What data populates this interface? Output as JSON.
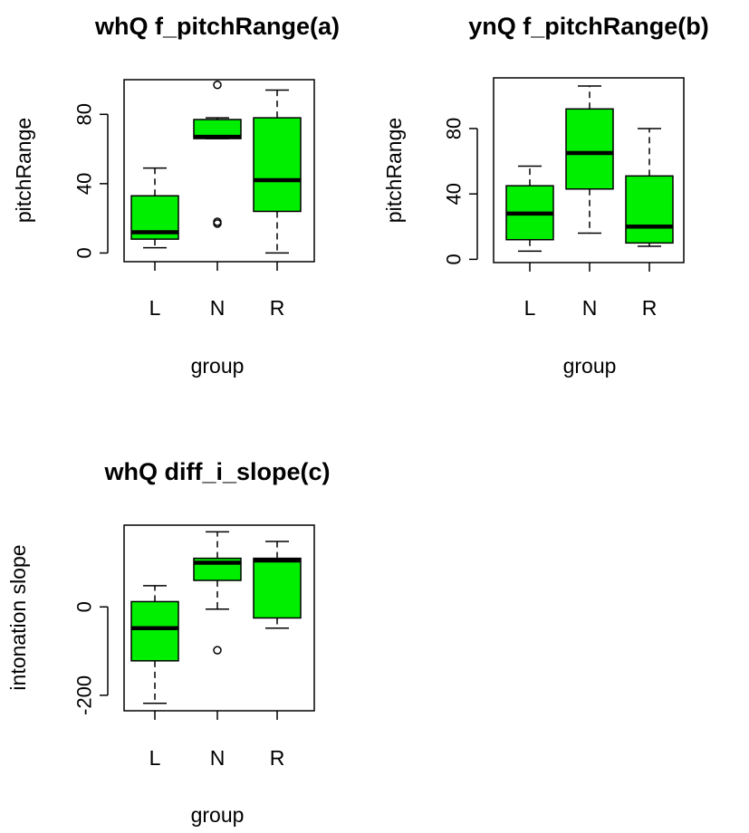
{
  "chart_data": [
    {
      "type": "boxplot",
      "title": "whQ f_pitchRange(a)",
      "xlabel": "group",
      "ylabel": "pitchRange",
      "categories": [
        "L",
        "N",
        "R"
      ],
      "y_ticks": [
        "0",
        "40",
        "80"
      ],
      "ylim": [
        -5,
        100
      ],
      "box_color": "#00ee00",
      "boxes": [
        {
          "group": "L",
          "whisker_low": 3,
          "q1": 8,
          "median": 12,
          "q3": 33,
          "whisker_high": 49,
          "outliers": []
        },
        {
          "group": "N",
          "whisker_low": 66,
          "q1": 66,
          "median": 67,
          "q3": 77,
          "whisker_high": 78,
          "outliers": [
            97,
            18,
            17
          ]
        },
        {
          "group": "R",
          "whisker_low": 0,
          "q1": 24,
          "median": 42,
          "q3": 78,
          "whisker_high": 94,
          "outliers": []
        }
      ]
    },
    {
      "type": "boxplot",
      "title": "ynQ f_pitchRange(b)",
      "xlabel": "group",
      "ylabel": "pitchRange",
      "categories": [
        "L",
        "N",
        "R"
      ],
      "y_ticks": [
        "0",
        "40",
        "80"
      ],
      "ylim": [
        -2,
        111
      ],
      "box_color": "#00ee00",
      "boxes": [
        {
          "group": "L",
          "whisker_low": 5,
          "q1": 12,
          "median": 28,
          "q3": 45,
          "whisker_high": 57,
          "outliers": []
        },
        {
          "group": "N",
          "whisker_low": 16,
          "q1": 43,
          "median": 65,
          "q3": 92,
          "whisker_high": 106,
          "outliers": []
        },
        {
          "group": "R",
          "whisker_low": 8,
          "q1": 10,
          "median": 20,
          "q3": 51,
          "whisker_high": 80,
          "outliers": []
        }
      ]
    },
    {
      "type": "boxplot",
      "title": "whQ diff_i_slope(c)",
      "xlabel": "group",
      "ylabel": "intonation slope",
      "categories": [
        "L",
        "N",
        "R"
      ],
      "y_ticks": [
        "-200",
        "0"
      ],
      "ylim": [
        -235,
        185
      ],
      "box_color": "#00ee00",
      "boxes": [
        {
          "group": "L",
          "whisker_low": -218,
          "q1": -122,
          "median": -48,
          "q3": 12,
          "whisker_high": 48,
          "outliers": []
        },
        {
          "group": "N",
          "whisker_low": -5,
          "q1": 60,
          "median": 100,
          "q3": 110,
          "whisker_high": 170,
          "outliers": [
            -98
          ]
        },
        {
          "group": "R",
          "whisker_low": -48,
          "q1": -25,
          "median": 105,
          "q3": 110,
          "whisker_high": 148,
          "outliers": []
        }
      ]
    }
  ]
}
